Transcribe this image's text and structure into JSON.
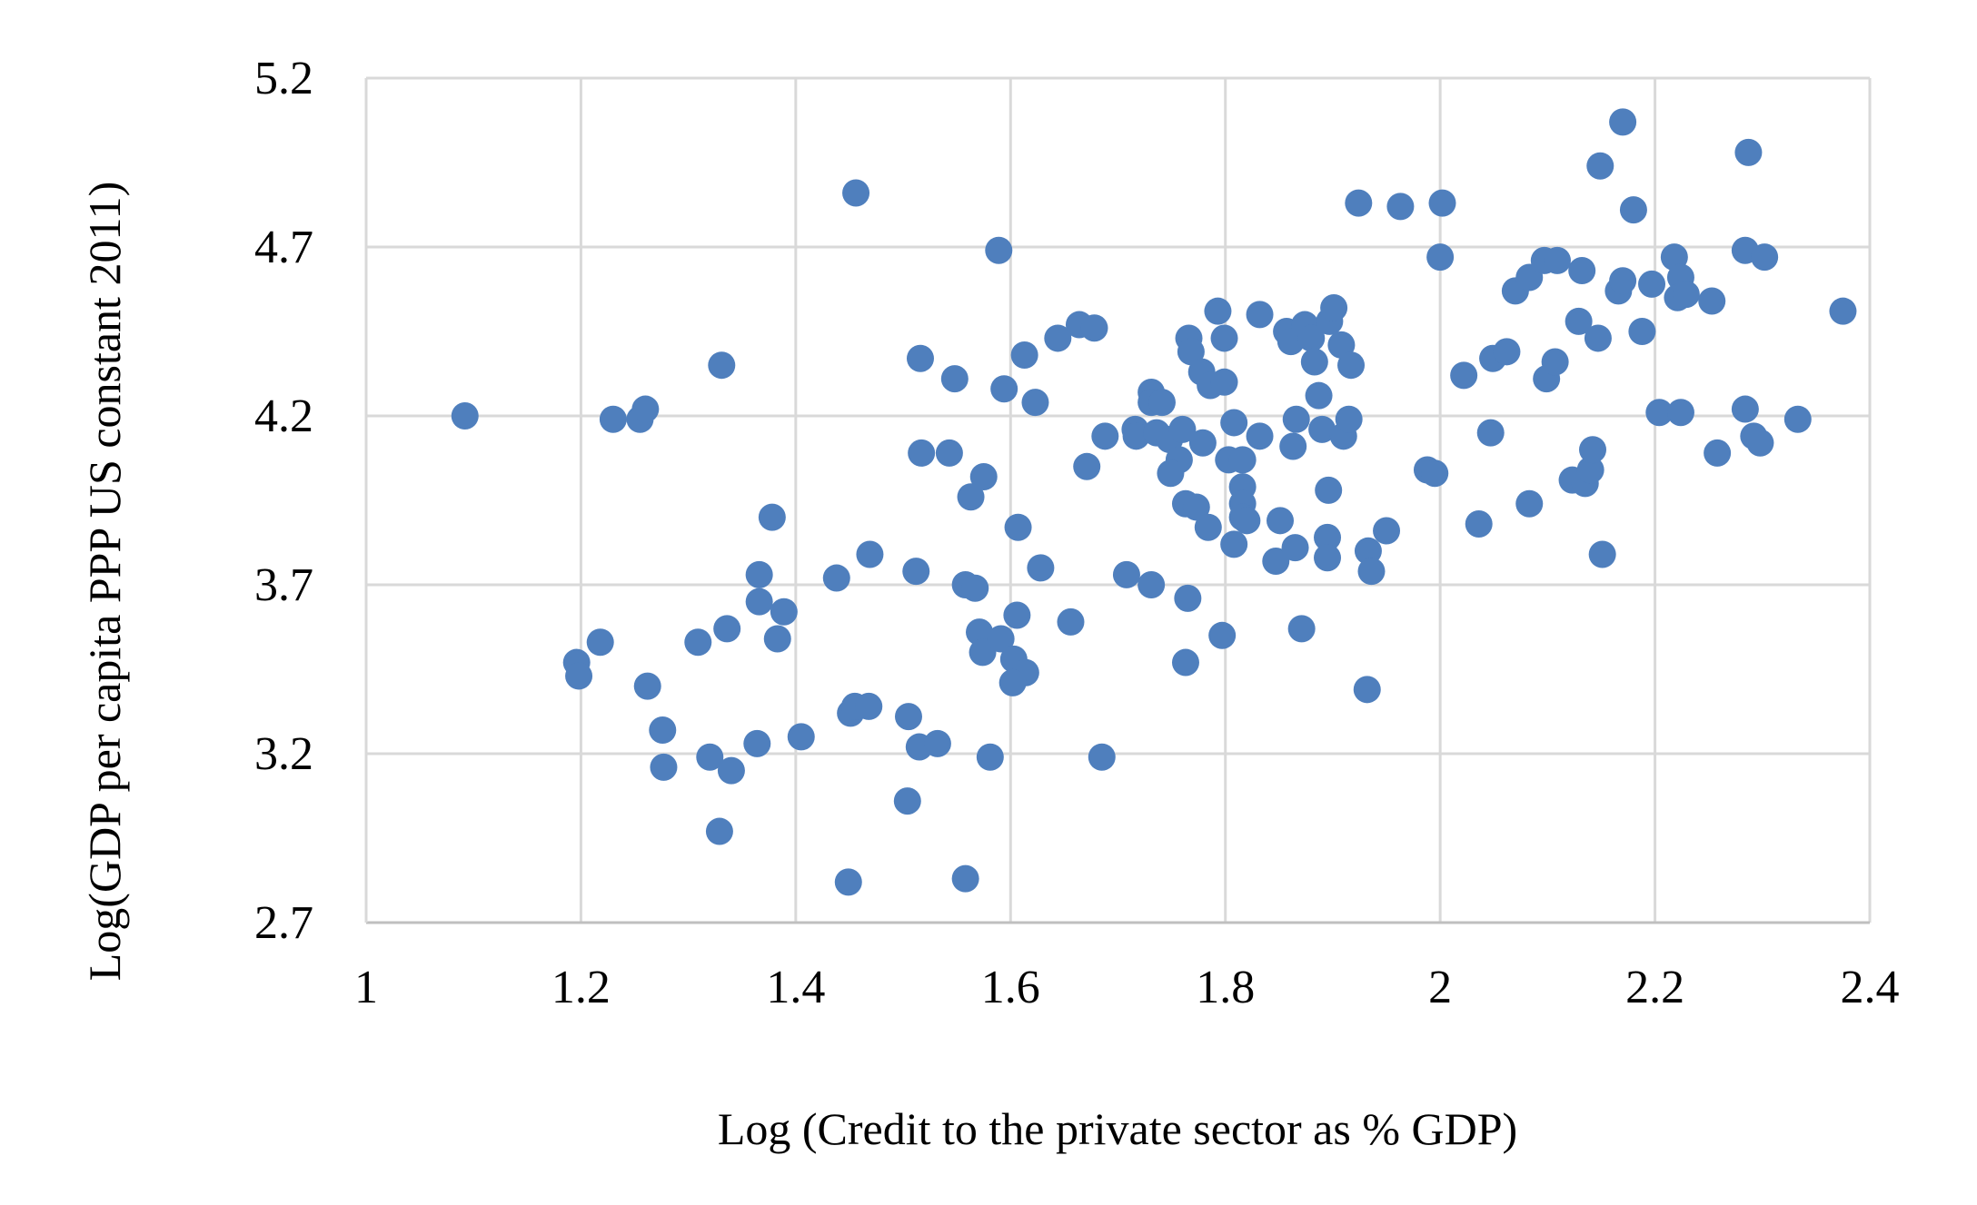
{
  "chart_data": {
    "type": "scatter",
    "title": "",
    "xlabel": "Log (Credit to the private sector as % GDP)",
    "ylabel": "Log(GDP per capita PPP US constant 2011)",
    "xlim": [
      1,
      2.4
    ],
    "ylim": [
      2.7,
      5.2
    ],
    "xticks": [
      "1",
      "1.2",
      "1.4",
      "1.6",
      "1.8",
      "2",
      "2.2",
      "2.4"
    ],
    "yticks": [
      "2.7",
      "3.2",
      "3.7",
      "4.2",
      "4.7",
      "5.2"
    ],
    "grid": true,
    "legend": "none",
    "marker_color": "#4f7fbd",
    "grid_color": "#d9d9d9",
    "points": [
      [
        1.092,
        4.2
      ],
      [
        1.23,
        4.19
      ],
      [
        1.255,
        4.19
      ],
      [
        1.26,
        4.22
      ],
      [
        1.331,
        4.35
      ],
      [
        1.456,
        4.86
      ],
      [
        1.589,
        4.69
      ],
      [
        1.516,
        4.37
      ],
      [
        1.548,
        4.31
      ],
      [
        1.594,
        4.28
      ],
      [
        1.613,
        4.38
      ],
      [
        1.623,
        4.24
      ],
      [
        1.644,
        4.43
      ],
      [
        1.664,
        4.47
      ],
      [
        1.678,
        4.46
      ],
      [
        1.517,
        4.09
      ],
      [
        1.543,
        4.09
      ],
      [
        1.575,
        4.02
      ],
      [
        1.563,
        3.96
      ],
      [
        1.671,
        4.05
      ],
      [
        1.688,
        4.14
      ],
      [
        1.716,
        4.16
      ],
      [
        1.717,
        4.14
      ],
      [
        1.731,
        4.27
      ],
      [
        1.731,
        4.24
      ],
      [
        1.741,
        4.24
      ],
      [
        1.736,
        4.15
      ],
      [
        1.748,
        4.13
      ],
      [
        1.76,
        4.16
      ],
      [
        1.757,
        4.07
      ],
      [
        1.749,
        4.03
      ],
      [
        1.763,
        3.94
      ],
      [
        1.773,
        3.93
      ],
      [
        1.784,
        3.87
      ],
      [
        1.779,
        4.12
      ],
      [
        1.766,
        4.43
      ],
      [
        1.768,
        4.39
      ],
      [
        1.778,
        4.33
      ],
      [
        1.786,
        4.29
      ],
      [
        1.799,
        4.3
      ],
      [
        1.793,
        4.51
      ],
      [
        1.799,
        4.43
      ],
      [
        1.832,
        4.5
      ],
      [
        1.808,
        4.18
      ],
      [
        1.803,
        4.07
      ],
      [
        1.816,
        4.07
      ],
      [
        1.832,
        4.14
      ],
      [
        1.816,
        3.99
      ],
      [
        1.816,
        3.94
      ],
      [
        1.816,
        3.9
      ],
      [
        1.82,
        3.89
      ],
      [
        1.808,
        3.82
      ],
      [
        1.851,
        3.89
      ],
      [
        1.847,
        3.77
      ],
      [
        1.865,
        3.81
      ],
      [
        1.863,
        4.11
      ],
      [
        1.866,
        4.19
      ],
      [
        1.857,
        4.45
      ],
      [
        1.861,
        4.42
      ],
      [
        1.874,
        4.47
      ],
      [
        1.88,
        4.43
      ],
      [
        1.883,
        4.36
      ],
      [
        1.887,
        4.26
      ],
      [
        1.89,
        4.16
      ],
      [
        1.895,
        3.84
      ],
      [
        1.895,
        3.78
      ],
      [
        1.896,
        3.98
      ],
      [
        1.897,
        4.48
      ],
      [
        1.901,
        4.52
      ],
      [
        1.908,
        4.41
      ],
      [
        1.91,
        4.14
      ],
      [
        1.915,
        4.19
      ],
      [
        1.917,
        4.35
      ],
      [
        1.924,
        4.83
      ],
      [
        1.933,
        3.8
      ],
      [
        1.936,
        3.74
      ],
      [
        1.95,
        3.86
      ],
      [
        1.932,
        3.39
      ],
      [
        1.871,
        3.57
      ],
      [
        1.963,
        4.82
      ],
      [
        2.002,
        4.83
      ],
      [
        2.0,
        4.67
      ],
      [
        1.988,
        4.04
      ],
      [
        1.995,
        4.03
      ],
      [
        2.022,
        4.32
      ],
      [
        2.036,
        3.88
      ],
      [
        2.047,
        4.15
      ],
      [
        2.049,
        4.37
      ],
      [
        2.062,
        4.39
      ],
      [
        2.07,
        4.57
      ],
      [
        2.083,
        4.61
      ],
      [
        2.097,
        4.66
      ],
      [
        2.109,
        4.66
      ],
      [
        2.099,
        4.31
      ],
      [
        2.107,
        4.36
      ],
      [
        2.083,
        3.94
      ],
      [
        2.123,
        4.01
      ],
      [
        2.135,
        4.0
      ],
      [
        2.14,
        4.04
      ],
      [
        2.142,
        4.1
      ],
      [
        2.129,
        4.48
      ],
      [
        2.132,
        4.63
      ],
      [
        2.147,
        4.43
      ],
      [
        2.151,
        3.79
      ],
      [
        2.149,
        4.94
      ],
      [
        2.17,
        5.07
      ],
      [
        2.18,
        4.81
      ],
      [
        2.166,
        4.57
      ],
      [
        2.17,
        4.6
      ],
      [
        2.188,
        4.45
      ],
      [
        2.197,
        4.59
      ],
      [
        2.204,
        4.21
      ],
      [
        2.218,
        4.67
      ],
      [
        2.224,
        4.61
      ],
      [
        2.221,
        4.55
      ],
      [
        2.229,
        4.56
      ],
      [
        2.224,
        4.21
      ],
      [
        2.253,
        4.54
      ],
      [
        2.258,
        4.09
      ],
      [
        2.284,
        4.69
      ],
      [
        2.287,
        4.98
      ],
      [
        2.302,
        4.67
      ],
      [
        2.284,
        4.22
      ],
      [
        2.292,
        4.14
      ],
      [
        2.298,
        4.12
      ],
      [
        2.333,
        4.19
      ],
      [
        2.375,
        4.51
      ],
      [
        1.196,
        3.47
      ],
      [
        1.198,
        3.43
      ],
      [
        1.218,
        3.53
      ],
      [
        1.262,
        3.4
      ],
      [
        1.276,
        3.27
      ],
      [
        1.277,
        3.16
      ],
      [
        1.309,
        3.53
      ],
      [
        1.336,
        3.57
      ],
      [
        1.32,
        3.19
      ],
      [
        1.34,
        3.15
      ],
      [
        1.329,
        2.97
      ],
      [
        1.364,
        3.23
      ],
      [
        1.366,
        3.73
      ],
      [
        1.366,
        3.65
      ],
      [
        1.383,
        3.54
      ],
      [
        1.389,
        3.62
      ],
      [
        1.378,
        3.9
      ],
      [
        1.405,
        3.25
      ],
      [
        1.438,
        3.72
      ],
      [
        1.469,
        3.79
      ],
      [
        1.451,
        3.32
      ],
      [
        1.455,
        3.34
      ],
      [
        1.468,
        3.34
      ],
      [
        1.449,
        2.82
      ],
      [
        1.505,
        3.31
      ],
      [
        1.504,
        3.06
      ],
      [
        1.512,
        3.74
      ],
      [
        1.515,
        3.22
      ],
      [
        1.532,
        3.23
      ],
      [
        1.558,
        2.83
      ],
      [
        1.558,
        3.7
      ],
      [
        1.567,
        3.69
      ],
      [
        1.571,
        3.56
      ],
      [
        1.574,
        3.5
      ],
      [
        1.591,
        3.54
      ],
      [
        1.581,
        3.19
      ],
      [
        1.606,
        3.61
      ],
      [
        1.603,
        3.48
      ],
      [
        1.614,
        3.44
      ],
      [
        1.602,
        3.41
      ],
      [
        1.607,
        3.87
      ],
      [
        1.628,
        3.75
      ],
      [
        1.656,
        3.59
      ],
      [
        1.685,
        3.19
      ],
      [
        1.708,
        3.73
      ],
      [
        1.731,
        3.7
      ],
      [
        1.765,
        3.66
      ],
      [
        1.763,
        3.47
      ],
      [
        1.797,
        3.55
      ]
    ]
  }
}
